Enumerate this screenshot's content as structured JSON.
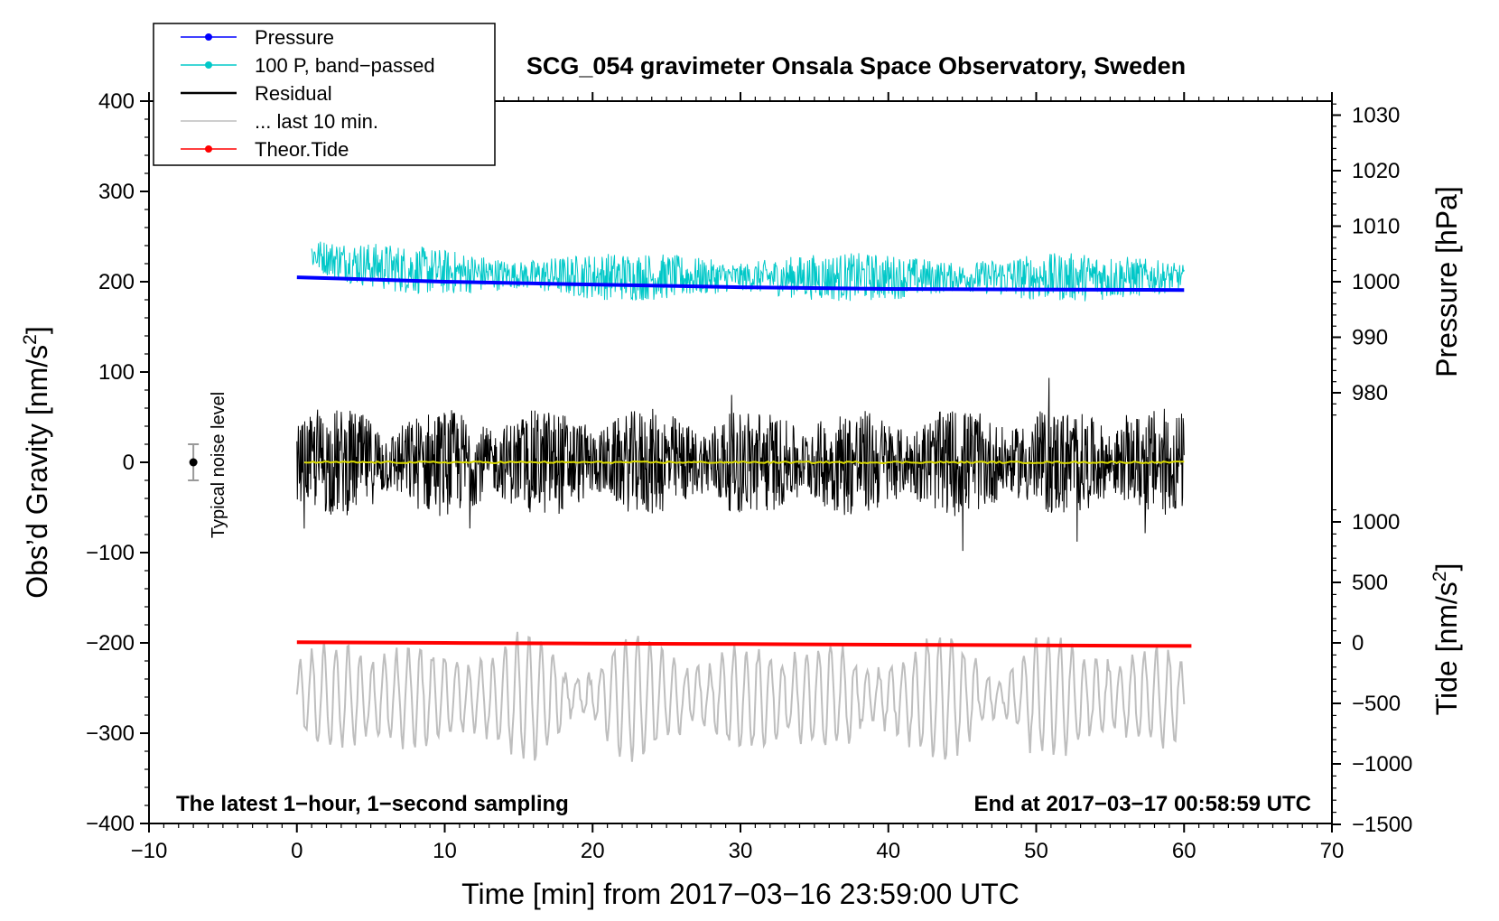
{
  "chart_data": {
    "type": "line",
    "title": "SCG_054 gravimeter Onsala Space Observatory, Sweden",
    "xlabel": "Time [min] from 2017−03−16 23:59:00 UTC",
    "ylabel_left_prefix": "Obs’d Gravity [nm/s",
    "ylabel_left_sup": "2",
    "ylabel_left_suffix": "]",
    "ylabel_right_top": "Pressure [hPa]",
    "ylabel_right_bottom_prefix": "Tide [nm/s",
    "ylabel_right_bottom_sup": "2",
    "ylabel_right_bottom_suffix": "]",
    "xlim": [
      -10,
      70
    ],
    "ylim": [
      -400,
      400
    ],
    "x_ticks": [
      "−10",
      "0",
      "10",
      "20",
      "30",
      "40",
      "50",
      "60",
      "70"
    ],
    "y_ticks": [
      "400",
      "300",
      "200",
      "100",
      "0",
      "−100",
      "−200",
      "−300",
      "−400"
    ],
    "pressure_ticks": [
      "1030",
      "1020",
      "1010",
      "1000",
      "990",
      "980"
    ],
    "pressure_tick_values": [
      1030,
      1020,
      1010,
      1000,
      990,
      980
    ],
    "tide_ticks": [
      "1000",
      "500",
      "0",
      "−500",
      "−1000",
      "−1500"
    ],
    "tide_tick_values": [
      1000,
      500,
      0,
      -500,
      -1000,
      -1500
    ],
    "note_left": "The latest 1−hour, 1−second sampling",
    "note_right": "End at 2017−03−17 00:58:59 UTC",
    "noise_label": "Typical noise level",
    "noise_level": {
      "x": -7,
      "y": 0,
      "err": 20
    },
    "legend": [
      {
        "label": "Pressure",
        "color": "#0000ff",
        "marker": true
      },
      {
        "label": "100 P, band−passed",
        "color": "#00c8c8",
        "marker": true
      },
      {
        "label": "Residual",
        "color": "#000000",
        "marker": false
      },
      {
        "label": "... last 10 min.",
        "color": "#bebebe",
        "marker": false
      },
      {
        "label": "Theor.Tide",
        "color": "#ff0000",
        "marker": true
      }
    ],
    "series": [
      {
        "name": "Pressure",
        "axis": "pressure",
        "x": [
          0,
          5,
          10,
          20,
          30,
          40,
          50,
          60
        ],
        "y": [
          1000.8,
          1000.4,
          1000.0,
          999.5,
          999.0,
          998.7,
          998.6,
          998.5
        ]
      },
      {
        "name": "100 P, band-passed",
        "axis": "left",
        "center": 225,
        "amplitude": 35,
        "x_start": 1,
        "x_end": 60
      },
      {
        "name": "Residual",
        "axis": "left",
        "center": 0,
        "amplitude": 60,
        "x_start": 0,
        "x_end": 60
      },
      {
        "name": "... last 10 min.",
        "axis": "left",
        "center": -260,
        "amplitude": 55,
        "x_start": 0,
        "x_end": 60
      },
      {
        "name": "Theor.Tide",
        "axis": "tide",
        "x": [
          0,
          10,
          20,
          30,
          40,
          50,
          60.5
        ],
        "y": [
          5,
          0,
          -5,
          -10,
          -15,
          -20,
          -25
        ]
      },
      {
        "name": "Residual mean",
        "axis": "left",
        "x": [
          0.5,
          60
        ],
        "y": [
          0,
          0
        ]
      }
    ]
  }
}
